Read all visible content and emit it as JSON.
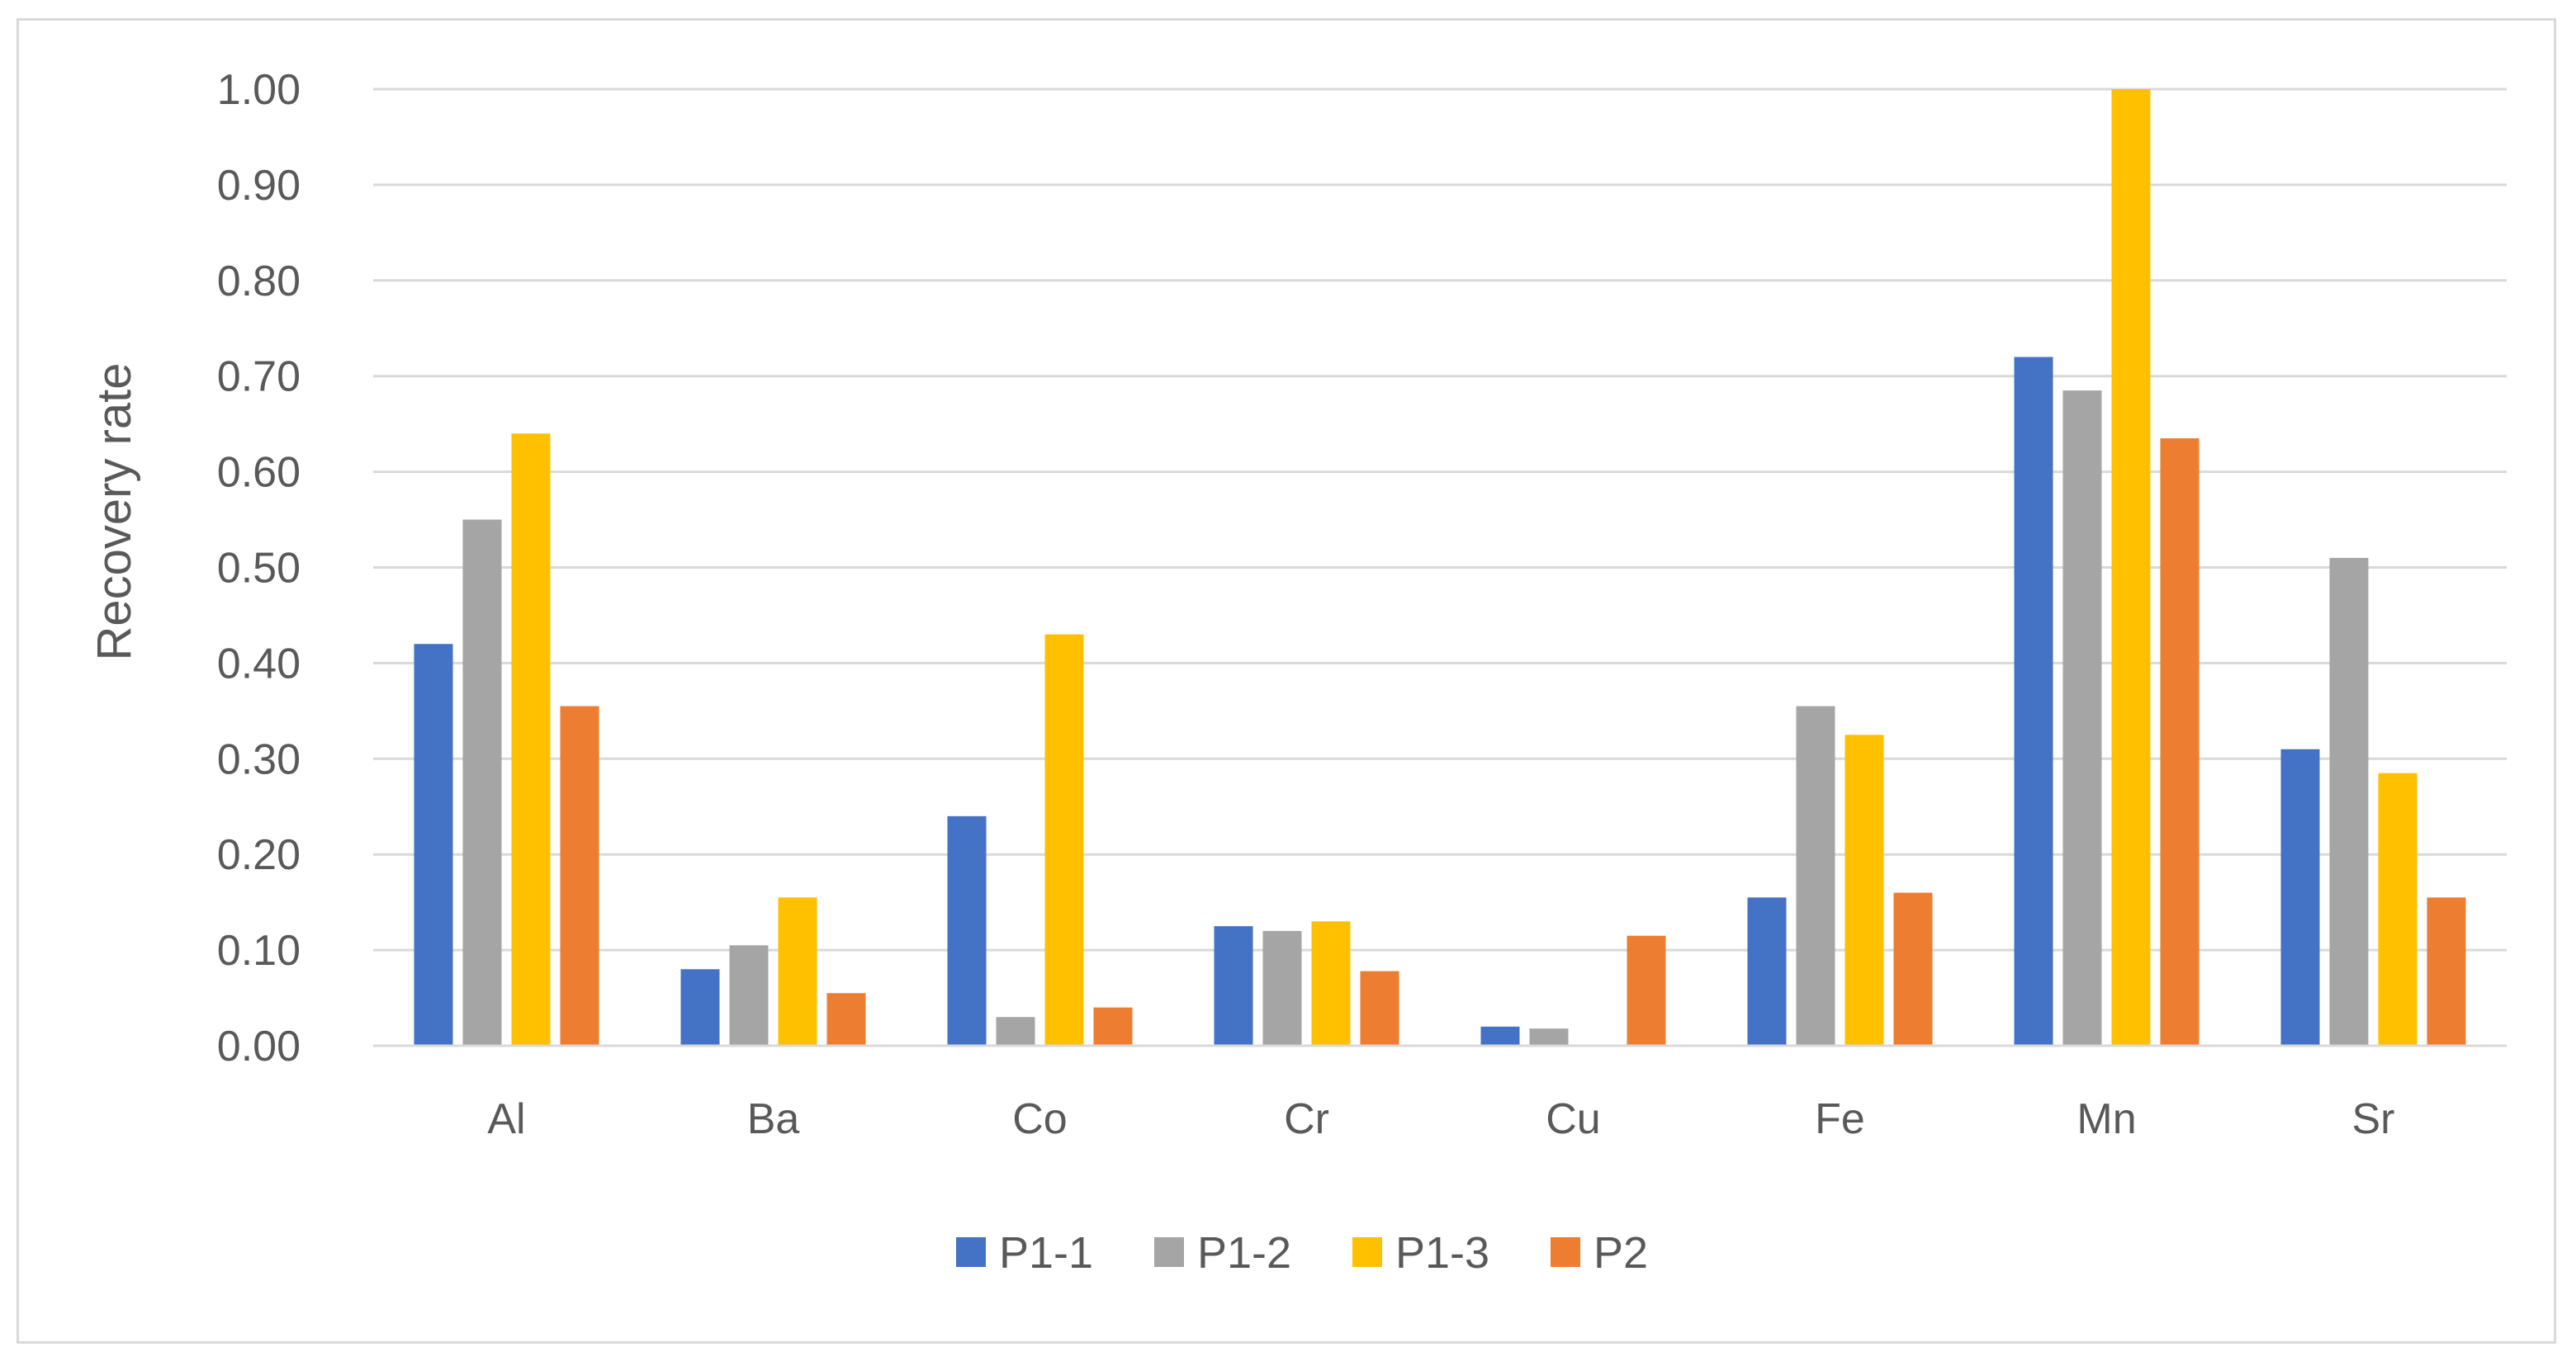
{
  "chart_data": {
    "type": "bar",
    "title": "",
    "xlabel": "",
    "ylabel": "Recovery rate",
    "ylim": [
      0,
      1.0
    ],
    "yticks": [
      "0.00",
      "0.10",
      "0.20",
      "0.30",
      "0.40",
      "0.50",
      "0.60",
      "0.70",
      "0.80",
      "0.90",
      "1.00"
    ],
    "grid": true,
    "legend_position": "bottom",
    "categories": [
      "Al",
      "Ba",
      "Co",
      "Cr",
      "Cu",
      "Fe",
      "Mn",
      "Sr"
    ],
    "series": [
      {
        "name": "P1-1",
        "color": "#4472C4",
        "values": [
          0.42,
          0.08,
          0.24,
          0.125,
          0.02,
          0.155,
          0.72,
          0.31
        ]
      },
      {
        "name": "P1-2",
        "color": "#A5A5A5",
        "values": [
          0.55,
          0.105,
          0.03,
          0.12,
          0.018,
          0.355,
          0.685,
          0.51
        ]
      },
      {
        "name": "P1-3",
        "color": "#FFC000",
        "values": [
          0.64,
          0.155,
          0.43,
          0.13,
          0.0,
          0.325,
          1.0,
          0.285
        ]
      },
      {
        "name": "P2",
        "color": "#ED7D31",
        "values": [
          0.355,
          0.055,
          0.04,
          0.078,
          0.115,
          0.16,
          0.635,
          0.155
        ]
      }
    ]
  }
}
